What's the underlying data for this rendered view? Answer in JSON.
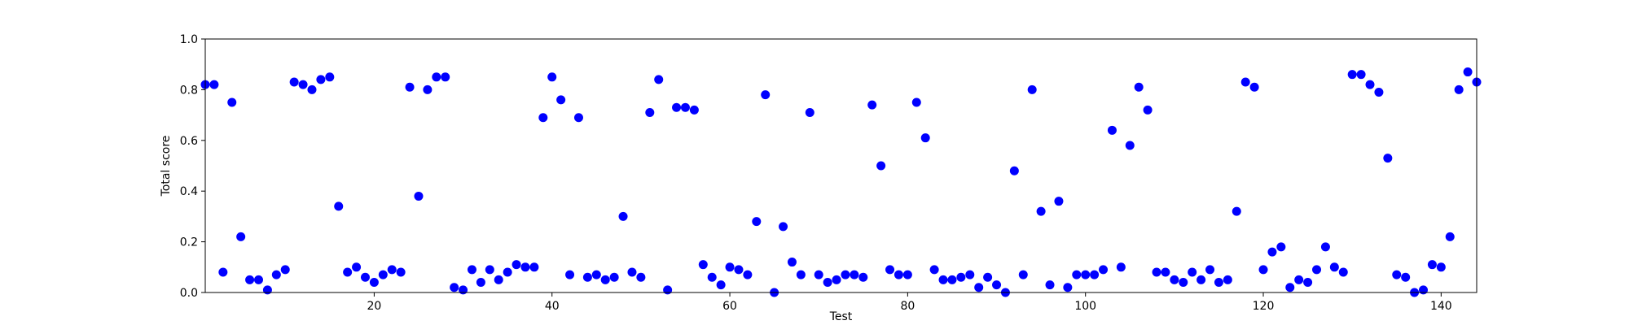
{
  "chart_data": {
    "type": "scatter",
    "title": "",
    "xlabel": "Test",
    "ylabel": "Total score",
    "xlim": [
      1,
      144
    ],
    "ylim": [
      0.0,
      1.0
    ],
    "x_ticks": [
      20,
      40,
      60,
      80,
      100,
      120,
      140
    ],
    "x_tick_labels": [
      "20",
      "40",
      "60",
      "80",
      "100",
      "120",
      "140"
    ],
    "y_ticks": [
      0.0,
      0.2,
      0.4,
      0.6,
      0.8,
      1.0
    ],
    "y_tick_labels": [
      "0.0",
      "0.2",
      "0.4",
      "0.6",
      "0.8",
      "1.0"
    ],
    "grid": false,
    "marker_color": "#0000ff",
    "series": [
      {
        "x": [
          1,
          2,
          3,
          4,
          5,
          6,
          7,
          8,
          9,
          10,
          11,
          12,
          13,
          14,
          15,
          16,
          17,
          18,
          19,
          20,
          21,
          22,
          23,
          24,
          25,
          26,
          27,
          28,
          29,
          30,
          31,
          32,
          33,
          34,
          35,
          36,
          37,
          38,
          39,
          40,
          41,
          42,
          43,
          44,
          45,
          46,
          47,
          48,
          49,
          50,
          51,
          52,
          53,
          54,
          55,
          56,
          57,
          58,
          59,
          60,
          61,
          62,
          63,
          64,
          65,
          66,
          67,
          68,
          69,
          70,
          71,
          72,
          73,
          74,
          75,
          76,
          77,
          78,
          79,
          80,
          81,
          82,
          83,
          84,
          85,
          86,
          87,
          88,
          89,
          90,
          91,
          92,
          93,
          94,
          95,
          96,
          97,
          98,
          99,
          100,
          101,
          102,
          103,
          104,
          105,
          106,
          107,
          108,
          109,
          110,
          111,
          112,
          113,
          114,
          115,
          116,
          117,
          118,
          119,
          120,
          121,
          122,
          123,
          124,
          125,
          126,
          127,
          128,
          129,
          130,
          131,
          132,
          133,
          134,
          135,
          136,
          137,
          138,
          139,
          140,
          141,
          142,
          143,
          144
        ],
        "y": [
          0.82,
          0.82,
          0.08,
          0.75,
          0.22,
          0.05,
          0.05,
          0.01,
          0.07,
          0.09,
          0.83,
          0.82,
          0.8,
          0.84,
          0.85,
          0.34,
          0.08,
          0.1,
          0.06,
          0.04,
          0.07,
          0.09,
          0.08,
          0.81,
          0.38,
          0.8,
          0.85,
          0.85,
          0.02,
          0.01,
          0.09,
          0.04,
          0.09,
          0.05,
          0.08,
          0.11,
          0.1,
          0.1,
          0.69,
          0.85,
          0.76,
          0.07,
          0.69,
          0.06,
          0.07,
          0.05,
          0.06,
          0.3,
          0.08,
          0.06,
          0.71,
          0.84,
          0.01,
          0.73,
          0.73,
          0.72,
          0.11,
          0.06,
          0.03,
          0.1,
          0.09,
          0.07,
          0.28,
          0.78,
          0.0,
          0.26,
          0.12,
          0.07,
          0.71,
          0.07,
          0.04,
          0.05,
          0.07,
          0.07,
          0.06,
          0.74,
          0.5,
          0.09,
          0.07,
          0.07,
          0.75,
          0.61,
          0.09,
          0.05,
          0.05,
          0.06,
          0.07,
          0.02,
          0.06,
          0.03,
          0.0,
          0.48,
          0.07,
          0.8,
          0.32,
          0.03,
          0.36,
          0.02,
          0.07,
          0.07,
          0.07,
          0.09,
          0.64,
          0.1,
          0.58,
          0.81,
          0.72,
          0.08,
          0.08,
          0.05,
          0.04,
          0.08,
          0.05,
          0.09,
          0.04,
          0.05,
          0.32,
          0.83,
          0.81,
          0.09,
          0.16,
          0.18,
          0.02,
          0.05,
          0.04,
          0.09,
          0.18,
          0.1,
          0.08,
          0.86,
          0.86,
          0.82,
          0.79,
          0.53,
          0.07,
          0.06,
          0.0,
          0.01,
          0.11,
          0.1,
          0.22,
          0.8,
          0.87,
          0.83
        ]
      }
    ]
  }
}
